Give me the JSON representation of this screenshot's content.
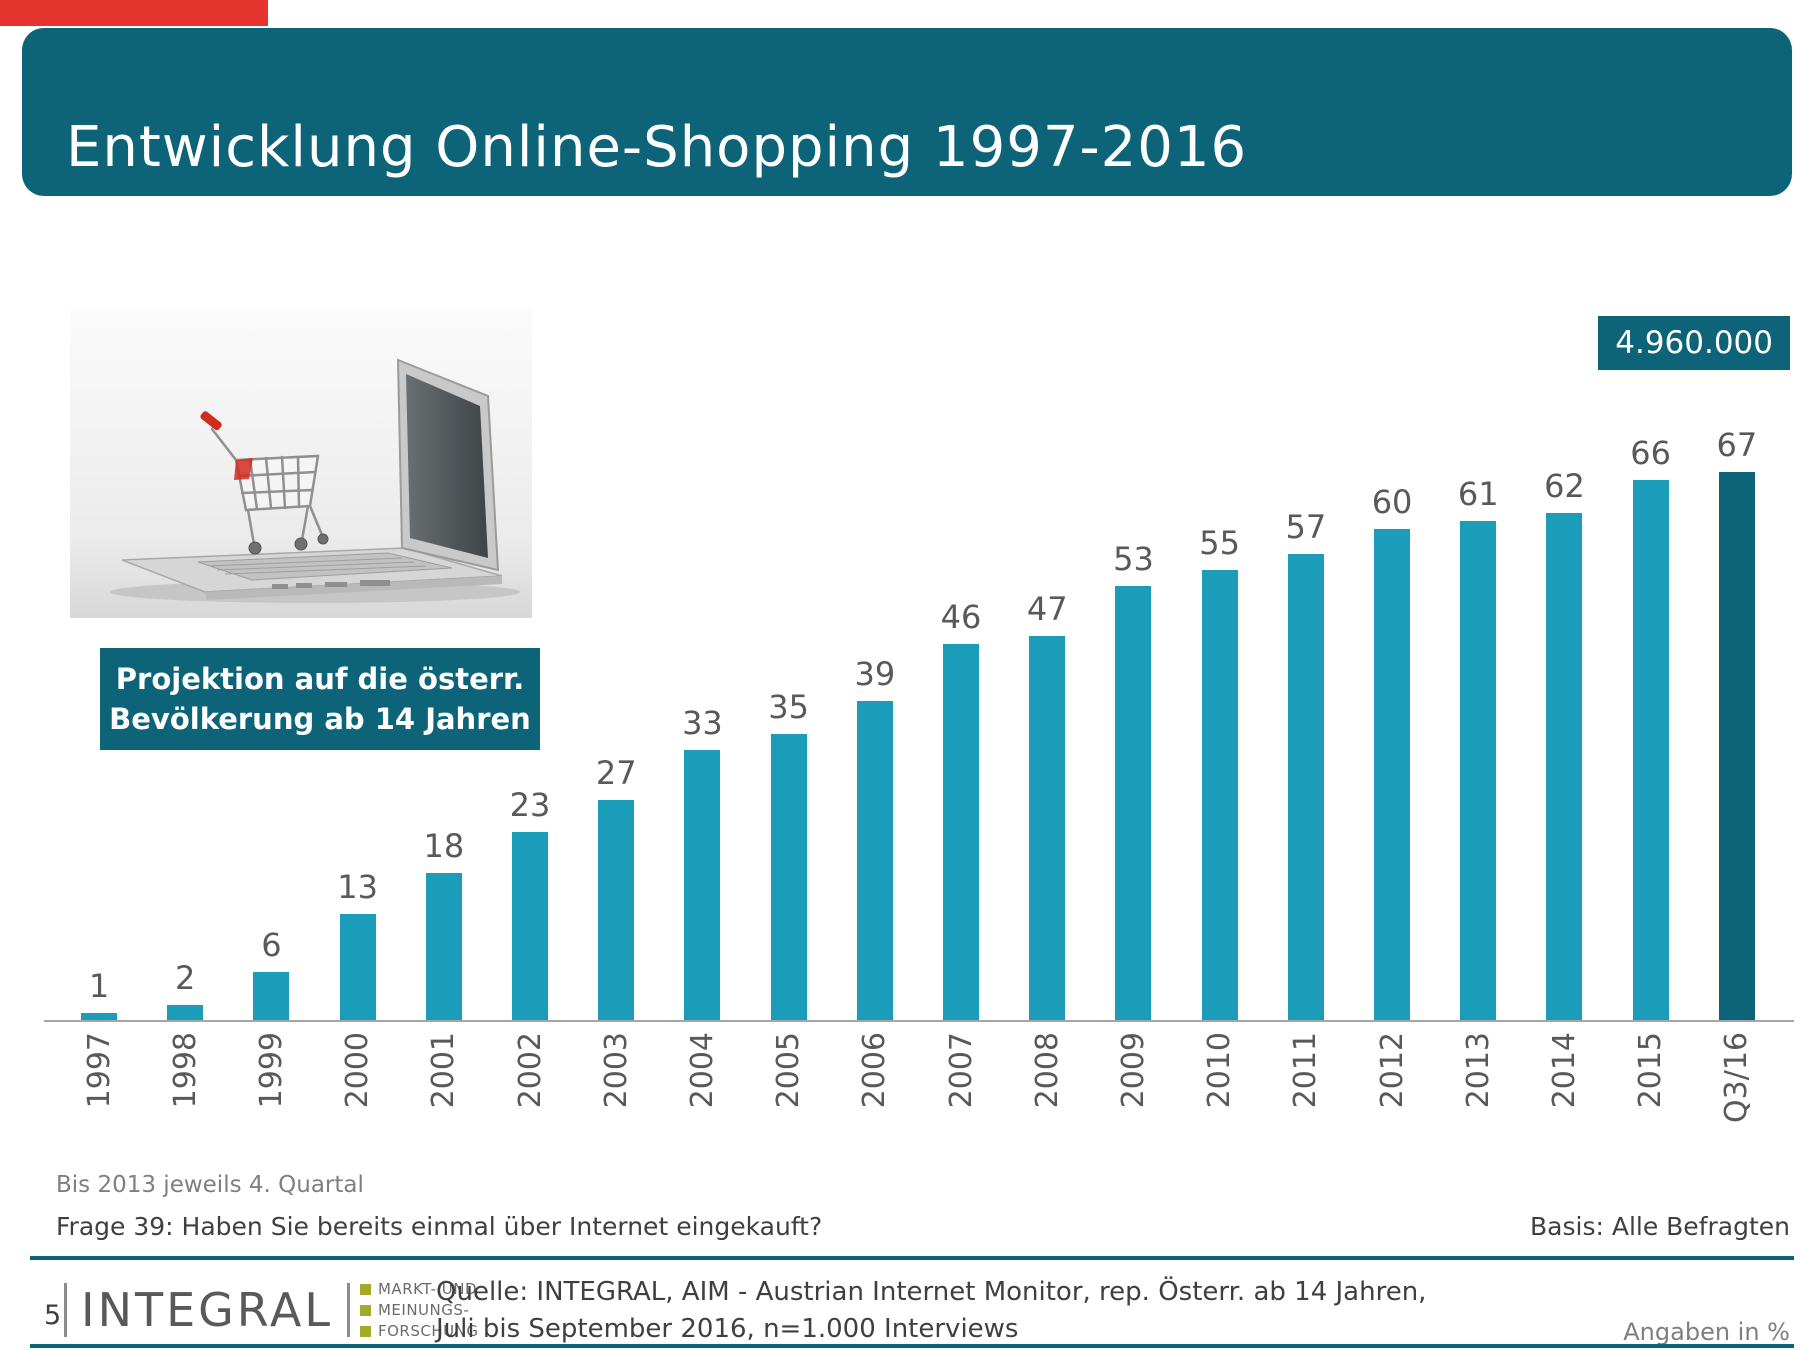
{
  "header": {
    "title": "Entwicklung Online-Shopping 1997-2016"
  },
  "chart_data": {
    "type": "bar",
    "title": "Entwicklung Online-Shopping 1997-2016",
    "categories": [
      "1997",
      "1998",
      "1999",
      "2000",
      "2001",
      "2002",
      "2003",
      "2004",
      "2005",
      "2006",
      "2007",
      "2008",
      "2009",
      "2010",
      "2011",
      "2012",
      "2013",
      "2014",
      "2015",
      "Q3/16"
    ],
    "values": [
      1,
      2,
      6,
      13,
      18,
      23,
      27,
      33,
      35,
      39,
      46,
      47,
      53,
      55,
      57,
      60,
      61,
      62,
      66,
      67
    ],
    "unit": "%",
    "ylim": [
      0,
      70
    ],
    "grid": false,
    "legend": "none",
    "value_labels": true,
    "bar_color": "#1b9cb9",
    "highlight_index": 19,
    "highlight_color": "#0d6478",
    "annotation": "4.960.000"
  },
  "annotations": {
    "badge_value": "4.960.000",
    "projection_line1": "Projektion auf die österr.",
    "projection_line2": "Bevölkerung ab 14 Jahren"
  },
  "footnotes": {
    "quartal_note": "Bis 2013 jeweils 4. Quartal",
    "question": "Frage 39: Haben Sie bereits einmal über Internet eingekauft?",
    "basis": "Basis: Alle Befragten"
  },
  "footer": {
    "page_number": "5",
    "logo_text": "INTEGRAL",
    "logo_sub": [
      "MARKT- UND",
      "MEINUNGS-",
      "FORSCHUNG"
    ],
    "source_line1": "Quelle: INTEGRAL, AIM - Austrian Internet Monitor, rep. Österr. ab 14 Jahren,",
    "source_line2": "Juli bis September 2016, n=1.000 Interviews",
    "units_note": "Angaben in %"
  }
}
